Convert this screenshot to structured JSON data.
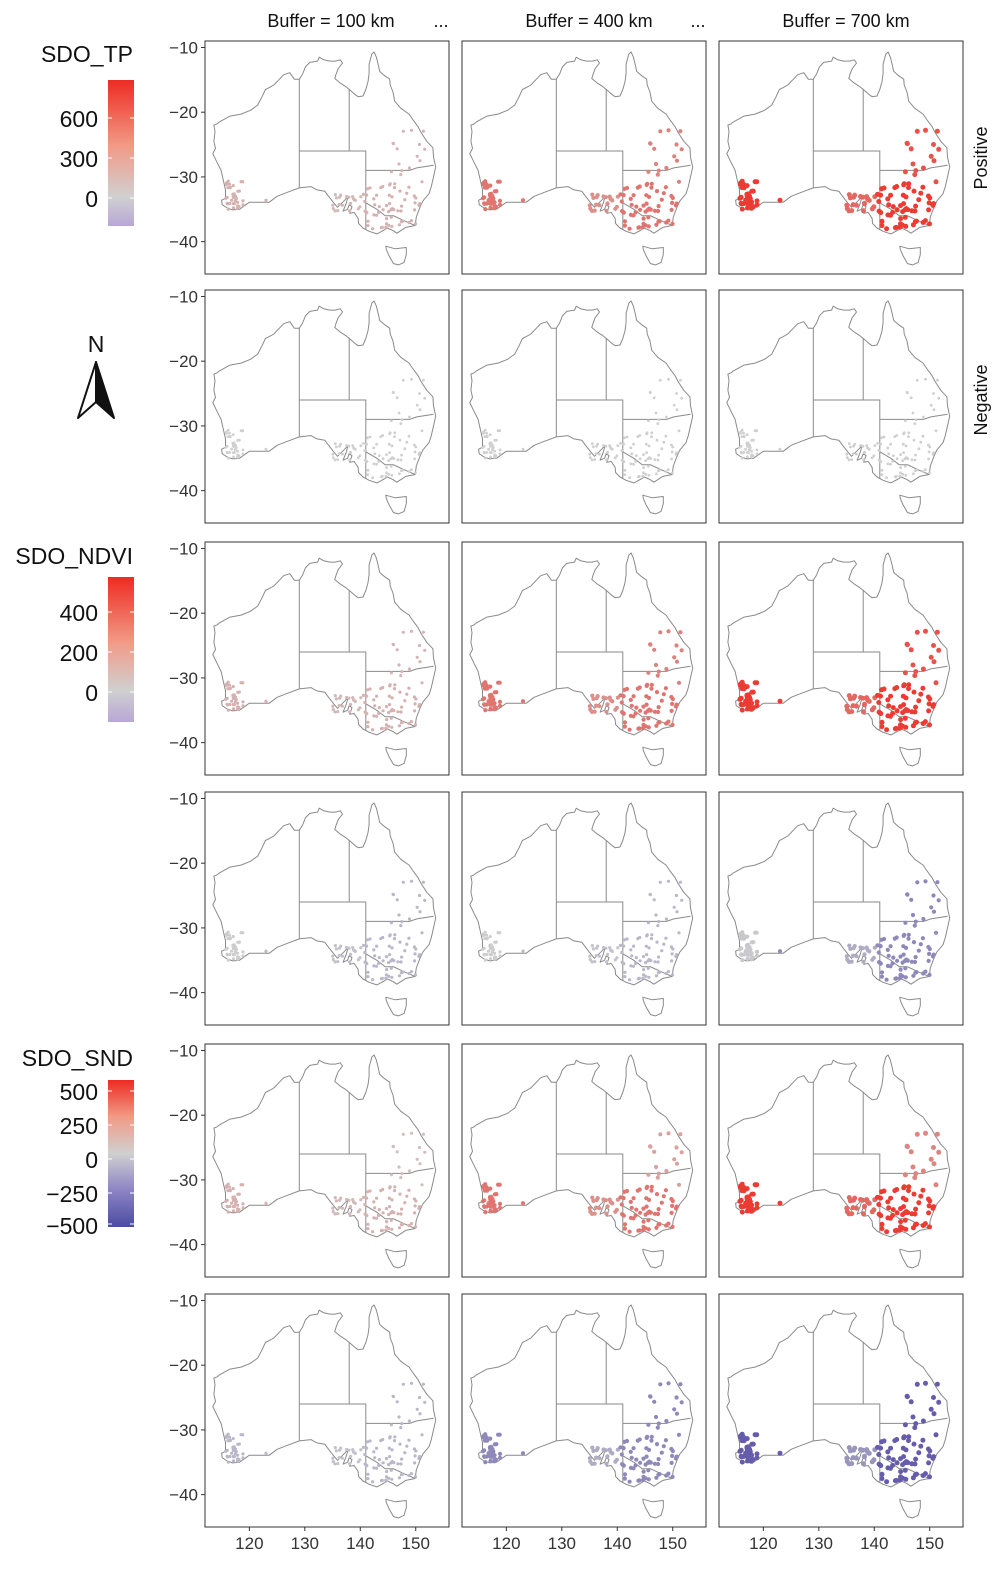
{
  "columns": [
    "Buffer = 100 km",
    "Buffer = 400 km",
    "Buffer = 700 km"
  ],
  "ellipsis": "...",
  "row_strips": [
    "Positive",
    "Negative"
  ],
  "north_label": "N",
  "axes": {
    "lon_ticks": [
      "120",
      "130",
      "140",
      "150"
    ],
    "lat_ticks": [
      "−10",
      "−20",
      "−30",
      "−40"
    ],
    "lon_range": [
      112,
      156
    ],
    "lat_range": [
      -45,
      -9
    ]
  },
  "legends": [
    {
      "title": "SDO_TP",
      "ticks": [
        "600",
        "300",
        "0"
      ],
      "colors": [
        "#ee2b22",
        "#f4a08a",
        "#cccccc",
        "#b8a7d6"
      ]
    },
    {
      "title": "SDO_NDVI",
      "ticks": [
        "400",
        "200",
        "0"
      ],
      "colors": [
        "#ee2b22",
        "#f4a08a",
        "#cccccc",
        "#b8a7d6"
      ]
    },
    {
      "title": "SDO_SND",
      "ticks": [
        "500",
        "250",
        "0",
        "−250",
        "−500"
      ],
      "colors": [
        "#ee2b22",
        "#f4a08a",
        "#cccccc",
        "#8c84c4",
        "#4b4ba3"
      ]
    }
  ],
  "chart_data": {
    "type": "map",
    "region": "Australia",
    "variables": [
      "SDO_TP",
      "SDO_NDVI",
      "SDO_SND"
    ],
    "panels": [
      {
        "row": 1,
        "variable": "SDO_TP",
        "sign": "Positive",
        "buffers": [
          "100 km",
          "400 km",
          "700 km"
        ],
        "intensity": [
          "low",
          "medium",
          "high"
        ],
        "hue": "red"
      },
      {
        "row": 2,
        "variable": "SDO_TP",
        "sign": "Negative",
        "buffers": [
          "100 km",
          "400 km",
          "700 km"
        ],
        "intensity": [
          "none",
          "none",
          "none"
        ],
        "hue": "grey"
      },
      {
        "row": 3,
        "variable": "SDO_NDVI",
        "sign": "Positive",
        "buffers": [
          "100 km",
          "400 km",
          "700 km"
        ],
        "intensity": [
          "low",
          "medium",
          "high"
        ],
        "hue": "red"
      },
      {
        "row": 4,
        "variable": "SDO_NDVI",
        "sign": "Negative",
        "buffers": [
          "100 km",
          "400 km",
          "700 km"
        ],
        "intensity": [
          "low",
          "low",
          "medium"
        ],
        "hue": "purple"
      },
      {
        "row": 5,
        "variable": "SDO_SND",
        "sign": "Positive",
        "buffers": [
          "100 km",
          "400 km",
          "700 km"
        ],
        "intensity": [
          "low",
          "medium",
          "high"
        ],
        "hue": "red"
      },
      {
        "row": 6,
        "variable": "SDO_SND",
        "sign": "Negative",
        "buffers": [
          "100 km",
          "400 km",
          "700 km"
        ],
        "intensity": [
          "low",
          "medium",
          "high"
        ],
        "hue": "purple"
      }
    ]
  }
}
